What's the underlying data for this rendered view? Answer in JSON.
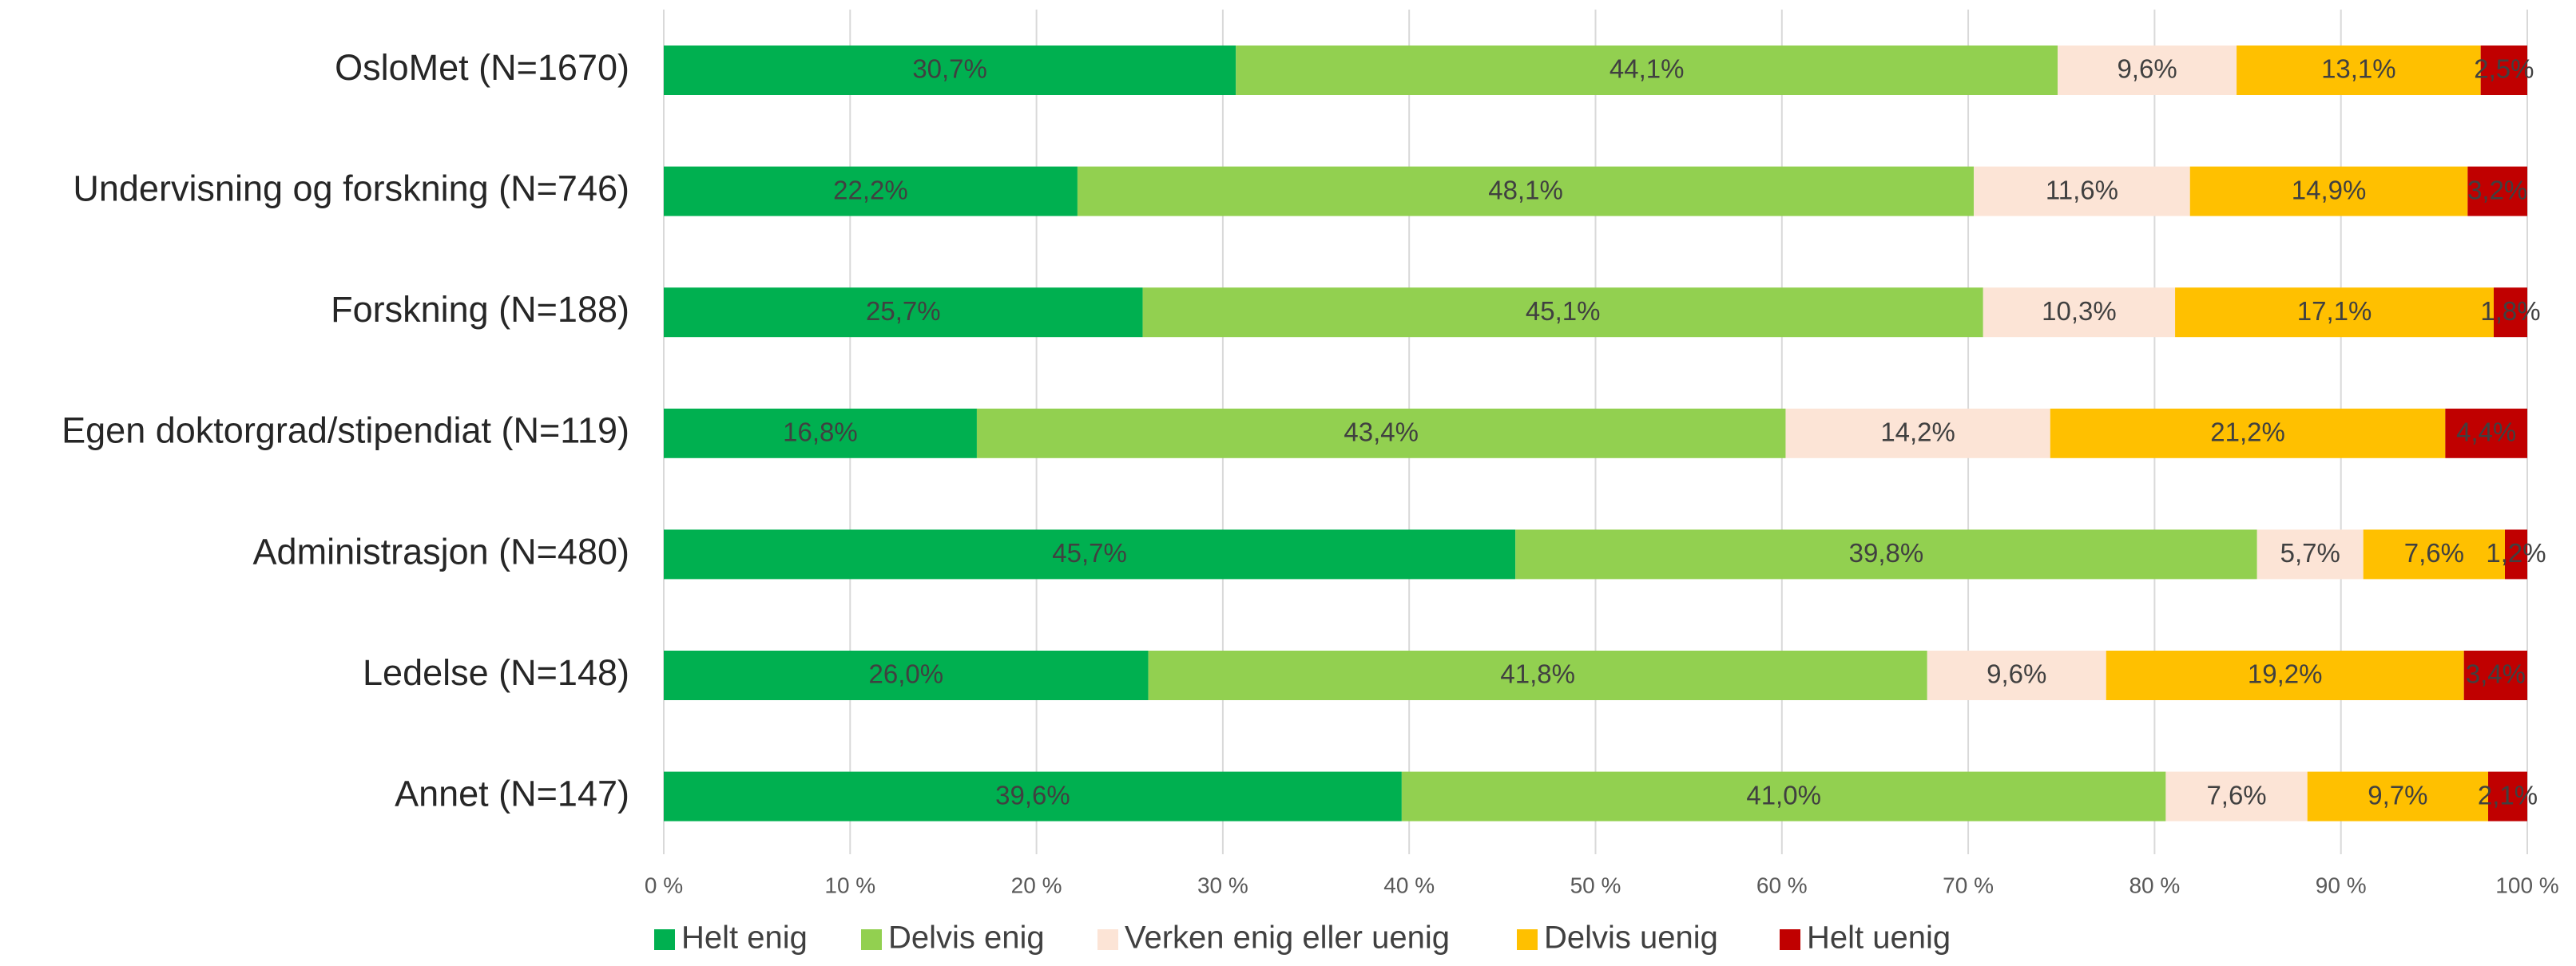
{
  "chart_data": {
    "type": "stacked_bar_horizontal",
    "categories": [
      "OsloMet (N=1670)",
      "Undervisning og forskning (N=746)",
      "Forskning (N=188)",
      "Egen doktorgrad/stipendiat (N=119)",
      "Administrasjon (N=480)",
      "Ledelse (N=148)",
      "Annet (N=147)"
    ],
    "series": [
      {
        "name": "Helt enig",
        "color": "#00b050",
        "values": [
          30.7,
          22.2,
          25.7,
          16.8,
          45.7,
          26.0,
          39.6
        ],
        "value_labels": [
          "30,7%",
          "22,2%",
          "25,7%",
          "16,8%",
          "45,7%",
          "26,0%",
          "39,6%"
        ]
      },
      {
        "name": "Delvis enig",
        "color": "#92d050",
        "values": [
          44.1,
          48.1,
          45.1,
          43.4,
          39.8,
          41.8,
          41.0
        ],
        "value_labels": [
          "44,1%",
          "48,1%",
          "45,1%",
          "43,4%",
          "39,8%",
          "41,8%",
          "41,0%"
        ]
      },
      {
        "name": "Verken enig eller uenig",
        "color": "#fce4d6",
        "values": [
          9.6,
          11.6,
          10.3,
          14.2,
          5.7,
          9.6,
          7.6
        ],
        "value_labels": [
          "9,6%",
          "11,6%",
          "10,3%",
          "14,2%",
          "5,7%",
          "9,6%",
          "7,6%"
        ]
      },
      {
        "name": "Delvis uenig",
        "color": "#ffc000",
        "values": [
          13.1,
          14.9,
          17.1,
          21.2,
          7.6,
          19.2,
          9.7
        ],
        "value_labels": [
          "13,1%",
          "14,9%",
          "17,1%",
          "21,2%",
          "7,6%",
          "19,2%",
          "9,7%"
        ]
      },
      {
        "name": "Helt uenig",
        "color": "#c00000",
        "values": [
          2.5,
          3.2,
          1.8,
          4.4,
          1.2,
          3.4,
          2.1
        ],
        "value_labels": [
          "2,5%",
          "3,2%",
          "1,8%",
          "4,4%",
          "1,2%",
          "3,4%",
          "2,1%"
        ]
      }
    ],
    "xlim": [
      0,
      100
    ],
    "xticks": [
      {
        "value": 0,
        "label": "0 %"
      },
      {
        "value": 10,
        "label": "10 %"
      },
      {
        "value": 20,
        "label": "20 %"
      },
      {
        "value": 30,
        "label": "30 %"
      },
      {
        "value": 40,
        "label": "40 %"
      },
      {
        "value": 50,
        "label": "50 %"
      },
      {
        "value": 60,
        "label": "60 %"
      },
      {
        "value": 70,
        "label": "70 %"
      },
      {
        "value": 80,
        "label": "80 %"
      },
      {
        "value": 90,
        "label": "90 %"
      },
      {
        "value": 100,
        "label": "100 %"
      }
    ],
    "grid": true,
    "legend": "bottom"
  }
}
